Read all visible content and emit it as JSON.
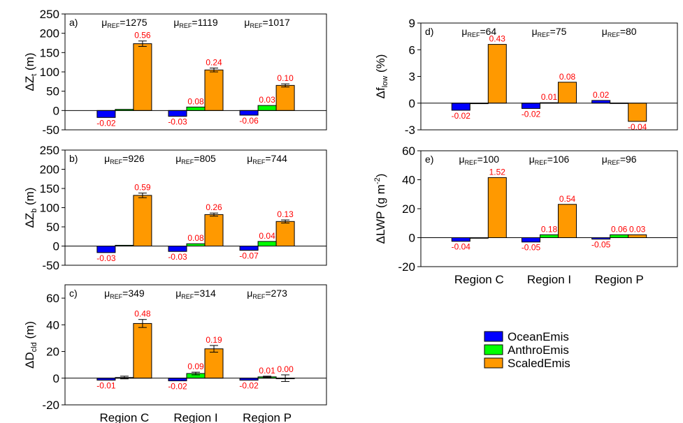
{
  "chart_data": [
    {
      "id": "a",
      "type": "bar",
      "panel_label": "a)",
      "ylabel": "ΔZ",
      "ylabel_sub": "t",
      "ylabel_unit": " (m)",
      "ylim": [
        -50,
        250
      ],
      "yticks": [
        -50,
        0,
        50,
        100,
        150,
        200,
        250
      ],
      "categories": [
        "Region C",
        "Region I",
        "Region P"
      ],
      "mu_ref": [
        "1275",
        "1119",
        "1017"
      ],
      "series": [
        {
          "name": "OceanEmis",
          "values": [
            -18,
            -15,
            -12
          ],
          "errors": [
            0,
            0,
            0
          ],
          "labels": [
            "-0.02",
            "-0.03",
            "-0.06"
          ]
        },
        {
          "name": "AnthroEmis",
          "values": [
            3,
            9,
            13
          ],
          "errors": [
            0,
            0,
            0
          ],
          "labels": [
            "",
            "0.08",
            "0.03"
          ]
        },
        {
          "name": "ScaledEmis",
          "values": [
            173,
            105,
            65
          ],
          "errors": [
            7,
            5,
            4
          ],
          "labels": [
            "0.56",
            "0.24",
            "0.10"
          ]
        }
      ]
    },
    {
      "id": "b",
      "type": "bar",
      "panel_label": "b)",
      "ylabel": "ΔZ",
      "ylabel_sub": "b",
      "ylabel_unit": " (m)",
      "ylim": [
        -50,
        250
      ],
      "yticks": [
        -50,
        0,
        50,
        100,
        150,
        200,
        250
      ],
      "categories": [
        "Region C",
        "Region I",
        "Region P"
      ],
      "mu_ref": [
        "926",
        "805",
        "744"
      ],
      "series": [
        {
          "name": "OceanEmis",
          "values": [
            -17,
            -14,
            -11
          ],
          "errors": [
            0,
            0,
            0
          ],
          "labels": [
            "-0.03",
            "-0.03",
            "-0.07"
          ]
        },
        {
          "name": "AnthroEmis",
          "values": [
            2,
            6,
            12
          ],
          "errors": [
            0,
            0,
            0
          ],
          "labels": [
            "",
            "0.08",
            "0.04"
          ]
        },
        {
          "name": "ScaledEmis",
          "values": [
            132,
            82,
            64
          ],
          "errors": [
            6,
            4,
            4
          ],
          "labels": [
            "0.59",
            "0.26",
            "0.13"
          ]
        }
      ]
    },
    {
      "id": "c",
      "type": "bar",
      "panel_label": "c)",
      "ylabel": "ΔD",
      "ylabel_sub": "cld",
      "ylabel_unit": " (m)",
      "ylim": [
        -20,
        70
      ],
      "yticks": [
        -20,
        0,
        20,
        40,
        60
      ],
      "categories": [
        "Region C",
        "Region I",
        "Region P"
      ],
      "mu_ref": [
        "349",
        "314",
        "273"
      ],
      "series": [
        {
          "name": "OceanEmis",
          "values": [
            -1.5,
            -2,
            -1.5
          ],
          "errors": [
            0,
            0,
            0
          ],
          "labels": [
            "-0.01",
            "-0.02",
            "-0.02"
          ]
        },
        {
          "name": "AnthroEmis",
          "values": [
            0.5,
            3.5,
            1
          ],
          "errors": [
            1,
            1,
            0.5
          ],
          "labels": [
            "",
            "0.09",
            "0.01"
          ]
        },
        {
          "name": "ScaledEmis",
          "values": [
            41,
            22,
            0
          ],
          "errors": [
            3,
            2.5,
            2.5
          ],
          "labels": [
            "0.48",
            "0.19",
            "0.00"
          ]
        }
      ]
    },
    {
      "id": "d",
      "type": "bar",
      "panel_label": "d)",
      "ylabel": "Δf",
      "ylabel_sub": "low",
      "ylabel_unit": " (%)",
      "ylim": [
        -3,
        9
      ],
      "yticks": [
        -3,
        0,
        3,
        6,
        9
      ],
      "categories": [
        "Region C",
        "Region I",
        "Region P"
      ],
      "mu_ref": [
        "64",
        "75",
        "80"
      ],
      "series": [
        {
          "name": "OceanEmis",
          "values": [
            -0.8,
            -0.6,
            0.3
          ],
          "errors": [
            0,
            0,
            0
          ],
          "labels": [
            "-0.02",
            "-0.02",
            "0.02"
          ]
        },
        {
          "name": "AnthroEmis",
          "values": [
            -0.05,
            0.05,
            0.02
          ],
          "errors": [
            0,
            0,
            0
          ],
          "labels": [
            "",
            "0.01",
            ""
          ]
        },
        {
          "name": "ScaledEmis",
          "values": [
            6.6,
            2.35,
            -2.05
          ],
          "errors": [
            0,
            0,
            0
          ],
          "labels": [
            "0.43",
            "0.08",
            "-0.04"
          ]
        }
      ]
    },
    {
      "id": "e",
      "type": "bar",
      "panel_label": "e)",
      "ylabel": "ΔLWP (g m",
      "ylabel_sup": "-2",
      "ylabel_unit": ")",
      "ylim": [
        -20,
        60
      ],
      "yticks": [
        -20,
        0,
        20,
        40,
        60
      ],
      "categories": [
        "Region C",
        "Region I",
        "Region P"
      ],
      "mu_ref": [
        "100",
        "106",
        "96"
      ],
      "series": [
        {
          "name": "OceanEmis",
          "values": [
            -2.5,
            -3,
            -1
          ],
          "errors": [
            0,
            0,
            0
          ],
          "labels": [
            "-0.04",
            "-0.05",
            "-0.05"
          ]
        },
        {
          "name": "AnthroEmis",
          "values": [
            0,
            2,
            2
          ],
          "errors": [
            0,
            0,
            0
          ],
          "labels": [
            "",
            "0.18",
            "0.06"
          ]
        },
        {
          "name": "ScaledEmis",
          "values": [
            41.5,
            23,
            2
          ],
          "errors": [
            0,
            0,
            0
          ],
          "labels": [
            "1.52",
            "0.54",
            "0.03"
          ]
        }
      ]
    }
  ],
  "mu_symbol": "μ",
  "mu_sub": "REF",
  "legend": [
    {
      "name": "OceanEmis",
      "color": "#0000ff"
    },
    {
      "name": "AnthroEmis",
      "color": "#00ff00"
    },
    {
      "name": "ScaledEmis",
      "color": "#ff9900"
    }
  ],
  "label_color": "#ff0000"
}
